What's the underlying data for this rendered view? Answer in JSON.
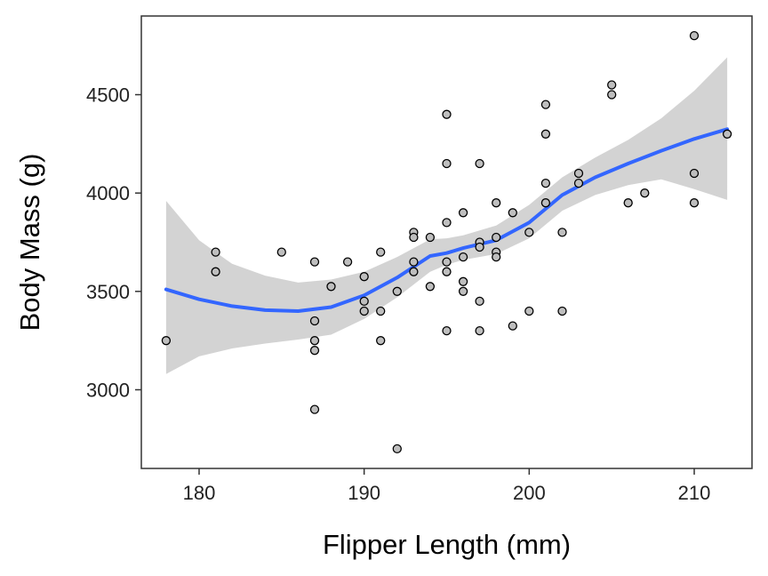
{
  "chart_data": {
    "type": "scatter",
    "xlabel": "Flipper Length (mm)",
    "ylabel": "Body Mass (g)",
    "xlim": [
      176.5,
      213.5
    ],
    "ylim": [
      2600,
      4900
    ],
    "x_ticks": [
      180,
      190,
      200,
      210
    ],
    "y_ticks": [
      3000,
      3500,
      4000,
      4500
    ],
    "grid": false,
    "points": [
      [
        178,
        3250
      ],
      [
        181,
        3700
      ],
      [
        181,
        3600
      ],
      [
        185,
        3700
      ],
      [
        187,
        3650
      ],
      [
        187,
        3350
      ],
      [
        187,
        3250
      ],
      [
        187,
        3200
      ],
      [
        187,
        2900
      ],
      [
        188,
        3525
      ],
      [
        189,
        3650
      ],
      [
        190,
        3575
      ],
      [
        190,
        3450
      ],
      [
        190,
        3400
      ],
      [
        191,
        3700
      ],
      [
        191,
        3400
      ],
      [
        191,
        3250
      ],
      [
        192,
        3500
      ],
      [
        192,
        2700
      ],
      [
        193,
        3800
      ],
      [
        193,
        3775
      ],
      [
        193,
        3650
      ],
      [
        193,
        3600
      ],
      [
        194,
        3775
      ],
      [
        194,
        3525
      ],
      [
        195,
        4400
      ],
      [
        195,
        4150
      ],
      [
        195,
        3850
      ],
      [
        195,
        3650
      ],
      [
        195,
        3600
      ],
      [
        195,
        3300
      ],
      [
        196,
        3900
      ],
      [
        196,
        3675
      ],
      [
        196,
        3550
      ],
      [
        196,
        3500
      ],
      [
        197,
        4150
      ],
      [
        197,
        3750
      ],
      [
        197,
        3725
      ],
      [
        197,
        3450
      ],
      [
        197,
        3300
      ],
      [
        198,
        3950
      ],
      [
        198,
        3775
      ],
      [
        198,
        3700
      ],
      [
        198,
        3675
      ],
      [
        199,
        3900
      ],
      [
        199,
        3325
      ],
      [
        200,
        3800
      ],
      [
        200,
        3400
      ],
      [
        201,
        4450
      ],
      [
        201,
        4300
      ],
      [
        201,
        4050
      ],
      [
        201,
        3950
      ],
      [
        202,
        3800
      ],
      [
        202,
        3400
      ],
      [
        203,
        4100
      ],
      [
        203,
        4050
      ],
      [
        205,
        4550
      ],
      [
        205,
        4500
      ],
      [
        206,
        3950
      ],
      [
        207,
        4000
      ],
      [
        210,
        4800
      ],
      [
        210,
        4100
      ],
      [
        210,
        3950
      ],
      [
        212,
        4300
      ]
    ],
    "smooth": {
      "method": "loess",
      "x": [
        178,
        180,
        182,
        184,
        186,
        188,
        190,
        192,
        194,
        195,
        196,
        198,
        200,
        202,
        204,
        206,
        208,
        210,
        212
      ],
      "y": [
        3510,
        3460,
        3425,
        3405,
        3400,
        3420,
        3480,
        3570,
        3680,
        3695,
        3720,
        3760,
        3850,
        3990,
        4080,
        4150,
        4215,
        4275,
        4325
      ],
      "lower": [
        3080,
        3170,
        3210,
        3235,
        3255,
        3280,
        3360,
        3470,
        3600,
        3635,
        3660,
        3690,
        3770,
        3910,
        3990,
        4040,
        4070,
        4020,
        3965
      ],
      "upper": [
        3960,
        3760,
        3640,
        3580,
        3545,
        3560,
        3600,
        3675,
        3765,
        3770,
        3785,
        3835,
        3940,
        4080,
        4180,
        4270,
        4380,
        4520,
        4690
      ]
    },
    "colors": {
      "line": "#3366FF",
      "band": "#D3D3D3",
      "point_fill": "#BEBEBE",
      "point_stroke": "#000000"
    }
  }
}
